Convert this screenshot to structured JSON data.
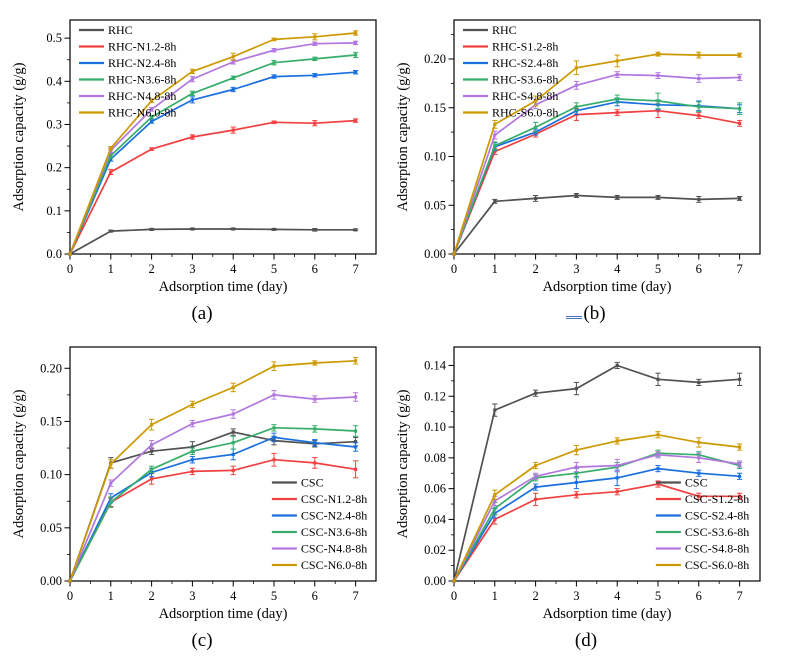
{
  "figure": {
    "grammar_mark_color": "#4472C4",
    "axis_color": "#000000",
    "background": "#ffffff"
  },
  "chart_data": [
    {
      "id": "a",
      "type": "line",
      "title": "",
      "caption": "(a)",
      "xlabel": "Adsorption time (day)",
      "ylabel": "Adsorption capacity (g/g)",
      "x": [
        0,
        1,
        2,
        3,
        4,
        5,
        6,
        7
      ],
      "xticks": [
        0,
        1,
        2,
        3,
        4,
        5,
        6,
        7
      ],
      "xlim": [
        0,
        7.5
      ],
      "ylim": [
        0,
        0.542
      ],
      "yticks": [
        0.0,
        0.1,
        0.2,
        0.3,
        0.4,
        0.5
      ],
      "ytick_decimals": 1,
      "ytick_minor_step": 0.05,
      "grid": false,
      "legend_position": "top-left",
      "series": [
        {
          "name": "RHC",
          "color": "#515151",
          "values": [
            0,
            0.053,
            0.057,
            0.058,
            0.058,
            0.057,
            0.056,
            0.056
          ],
          "errors": [
            0,
            0.002,
            0.002,
            0.002,
            0.002,
            0.002,
            0.003,
            0.002
          ]
        },
        {
          "name": "RHC-N1.2-8h",
          "color": "#F14040",
          "values": [
            0,
            0.19,
            0.243,
            0.271,
            0.287,
            0.305,
            0.303,
            0.309
          ],
          "errors": [
            0,
            0.006,
            0.003,
            0.005,
            0.007,
            0.003,
            0.006,
            0.004
          ]
        },
        {
          "name": "RHC-N2.4-8h",
          "color": "#1A6FDF",
          "values": [
            0,
            0.22,
            0.307,
            0.357,
            0.381,
            0.411,
            0.414,
            0.421
          ],
          "errors": [
            0,
            0.005,
            0.004,
            0.007,
            0.005,
            0.004,
            0.004,
            0.004
          ]
        },
        {
          "name": "RHC-N3.6-8h",
          "color": "#37AD6B",
          "values": [
            0,
            0.228,
            0.317,
            0.372,
            0.408,
            0.443,
            0.452,
            0.461
          ],
          "errors": [
            0,
            0.005,
            0.004,
            0.005,
            0.004,
            0.005,
            0.004,
            0.006
          ]
        },
        {
          "name": "RHC-N4.8-8h",
          "color": "#B177DE",
          "values": [
            0,
            0.24,
            0.335,
            0.405,
            0.445,
            0.472,
            0.487,
            0.489
          ],
          "errors": [
            0,
            0.005,
            0.004,
            0.006,
            0.005,
            0.004,
            0.004,
            0.004
          ]
        },
        {
          "name": "RHC-N6.0-8h",
          "color": "#CC9900",
          "values": [
            0,
            0.245,
            0.355,
            0.423,
            0.457,
            0.497,
            0.503,
            0.512
          ],
          "errors": [
            0,
            0.004,
            0.004,
            0.005,
            0.008,
            0.003,
            0.007,
            0.005
          ]
        }
      ]
    },
    {
      "id": "b",
      "type": "line",
      "title": "",
      "caption": "(b)",
      "xlabel": "Adsorption time (day)",
      "ylabel": "Adsorption capacity (g/g)",
      "x": [
        0,
        1,
        2,
        3,
        4,
        5,
        6,
        7
      ],
      "xticks": [
        0,
        1,
        2,
        3,
        4,
        5,
        6,
        7
      ],
      "xlim": [
        0,
        7.5
      ],
      "ylim": [
        0,
        0.24
      ],
      "yticks": [
        0.0,
        0.05,
        0.1,
        0.15,
        0.2
      ],
      "ytick_decimals": 2,
      "ytick_minor_step": 0.025,
      "grid": false,
      "legend_position": "top-left",
      "series": [
        {
          "name": "RHC",
          "color": "#515151",
          "values": [
            0,
            0.054,
            0.057,
            0.06,
            0.058,
            0.058,
            0.056,
            0.057
          ],
          "errors": [
            0,
            0.002,
            0.003,
            0.002,
            0.002,
            0.002,
            0.003,
            0.002
          ]
        },
        {
          "name": "RHC-S1.2-8h",
          "color": "#F14040",
          "values": [
            0,
            0.105,
            0.123,
            0.143,
            0.145,
            0.147,
            0.142,
            0.134
          ],
          "errors": [
            0,
            0.003,
            0.003,
            0.006,
            0.003,
            0.007,
            0.003,
            0.003
          ]
        },
        {
          "name": "RHC-S2.4-8h",
          "color": "#1A6FDF",
          "values": [
            0,
            0.11,
            0.125,
            0.147,
            0.156,
            0.153,
            0.152,
            0.149
          ],
          "errors": [
            0,
            0.004,
            0.003,
            0.004,
            0.004,
            0.005,
            0.005,
            0.004
          ]
        },
        {
          "name": "RHC-S3.6-8h",
          "color": "#37AD6B",
          "values": [
            0,
            0.111,
            0.13,
            0.151,
            0.159,
            0.157,
            0.151,
            0.149
          ],
          "errors": [
            0,
            0.004,
            0.005,
            0.004,
            0.004,
            0.008,
            0.005,
            0.006
          ]
        },
        {
          "name": "RHC-S4.8-8h",
          "color": "#B177DE",
          "values": [
            0,
            0.122,
            0.153,
            0.173,
            0.184,
            0.183,
            0.18,
            0.181
          ],
          "errors": [
            0,
            0.004,
            0.004,
            0.004,
            0.003,
            0.003,
            0.004,
            0.003
          ]
        },
        {
          "name": "RHC-S6.0-8h",
          "color": "#CC9900",
          "values": [
            0,
            0.133,
            0.157,
            0.191,
            0.198,
            0.205,
            0.204,
            0.204
          ],
          "errors": [
            0,
            0.004,
            0.005,
            0.007,
            0.006,
            0.002,
            0.003,
            0.002
          ]
        }
      ]
    },
    {
      "id": "c",
      "type": "line",
      "title": "",
      "caption": "(c)",
      "xlabel": "Adsorption time (day)",
      "ylabel": "Adsorption capacity (g/g)",
      "x": [
        0,
        1,
        2,
        3,
        4,
        5,
        6,
        7
      ],
      "xticks": [
        0,
        1,
        2,
        3,
        4,
        5,
        6,
        7
      ],
      "xlim": [
        0,
        7.5
      ],
      "ylim": [
        0,
        0.22
      ],
      "yticks": [
        0.0,
        0.05,
        0.1,
        0.15,
        0.2
      ],
      "ytick_decimals": 2,
      "ytick_minor_step": 0.025,
      "grid": false,
      "legend_position": "bottom-right",
      "series": [
        {
          "name": "CSC",
          "color": "#515151",
          "values": [
            0,
            0.111,
            0.122,
            0.126,
            0.14,
            0.132,
            0.129,
            0.131
          ],
          "errors": [
            0,
            0.005,
            0.003,
            0.005,
            0.003,
            0.004,
            0.003,
            0.004
          ]
        },
        {
          "name": "CSC-N1.2-8h",
          "color": "#F14040",
          "values": [
            0,
            0.074,
            0.096,
            0.103,
            0.104,
            0.114,
            0.111,
            0.105
          ],
          "errors": [
            0,
            0.004,
            0.005,
            0.003,
            0.004,
            0.006,
            0.005,
            0.008
          ]
        },
        {
          "name": "CSC-N2.4-8h",
          "color": "#1A6FDF",
          "values": [
            0,
            0.078,
            0.102,
            0.114,
            0.119,
            0.135,
            0.13,
            0.126
          ],
          "errors": [
            0,
            0.004,
            0.004,
            0.003,
            0.005,
            0.004,
            0.003,
            0.004
          ]
        },
        {
          "name": "CSC-N3.6-8h",
          "color": "#37AD6B",
          "values": [
            0,
            0.074,
            0.105,
            0.122,
            0.13,
            0.144,
            0.143,
            0.141
          ],
          "errors": [
            0,
            0.005,
            0.003,
            0.003,
            0.006,
            0.003,
            0.003,
            0.005
          ]
        },
        {
          "name": "CSC-N4.8-8h",
          "color": "#B177DE",
          "values": [
            0,
            0.092,
            0.128,
            0.148,
            0.157,
            0.175,
            0.171,
            0.173
          ],
          "errors": [
            0,
            0.003,
            0.004,
            0.003,
            0.004,
            0.004,
            0.003,
            0.004
          ]
        },
        {
          "name": "CSC-N6.0-8h",
          "color": "#CC9900",
          "values": [
            0,
            0.11,
            0.147,
            0.166,
            0.182,
            0.202,
            0.205,
            0.207
          ],
          "errors": [
            0,
            0.004,
            0.005,
            0.003,
            0.004,
            0.004,
            0.002,
            0.003
          ]
        }
      ]
    },
    {
      "id": "d",
      "type": "line",
      "title": "",
      "caption": "(d)",
      "xlabel": "Adsorption time (day)",
      "ylabel": "Adsorption capacity (g/g)",
      "x": [
        0,
        1,
        2,
        3,
        4,
        5,
        6,
        7
      ],
      "xticks": [
        0,
        1,
        2,
        3,
        4,
        5,
        6,
        7
      ],
      "xlim": [
        0,
        7.5
      ],
      "ylim": [
        0,
        0.152
      ],
      "yticks": [
        0.0,
        0.02,
        0.04,
        0.06,
        0.08,
        0.1,
        0.12,
        0.14
      ],
      "ytick_decimals": 2,
      "ytick_minor_step": 0.01,
      "grid": false,
      "legend_position": "bottom-right",
      "series": [
        {
          "name": "CSC",
          "color": "#515151",
          "values": [
            0,
            0.111,
            0.122,
            0.125,
            0.14,
            0.131,
            0.129,
            0.131
          ],
          "errors": [
            0,
            0.004,
            0.002,
            0.004,
            0.002,
            0.004,
            0.002,
            0.004
          ]
        },
        {
          "name": "CSC-S1.2-8h",
          "color": "#F14040",
          "values": [
            0,
            0.04,
            0.053,
            0.056,
            0.058,
            0.063,
            0.055,
            0.055
          ],
          "errors": [
            0,
            0.003,
            0.004,
            0.002,
            0.002,
            0.002,
            0.002,
            0.002
          ]
        },
        {
          "name": "CSC-S2.4-8h",
          "color": "#1A6FDF",
          "values": [
            0,
            0.044,
            0.061,
            0.064,
            0.067,
            0.073,
            0.07,
            0.068
          ],
          "errors": [
            0,
            0.003,
            0.002,
            0.004,
            0.005,
            0.002,
            0.002,
            0.002
          ]
        },
        {
          "name": "CSC-S3.6-8h",
          "color": "#37AD6B",
          "values": [
            0,
            0.047,
            0.067,
            0.07,
            0.074,
            0.083,
            0.082,
            0.075
          ],
          "errors": [
            0,
            0.004,
            0.002,
            0.003,
            0.003,
            0.002,
            0.002,
            0.002
          ]
        },
        {
          "name": "CSC-S4.8-8h",
          "color": "#B177DE",
          "values": [
            0,
            0.052,
            0.068,
            0.074,
            0.075,
            0.082,
            0.08,
            0.076
          ],
          "errors": [
            0,
            0.003,
            0.002,
            0.003,
            0.004,
            0.002,
            0.003,
            0.002
          ]
        },
        {
          "name": "CSC-S6.0-8h",
          "color": "#CC9900",
          "values": [
            0,
            0.056,
            0.075,
            0.085,
            0.091,
            0.095,
            0.09,
            0.087
          ],
          "errors": [
            0,
            0.003,
            0.002,
            0.003,
            0.002,
            0.002,
            0.003,
            0.002
          ]
        }
      ]
    }
  ]
}
